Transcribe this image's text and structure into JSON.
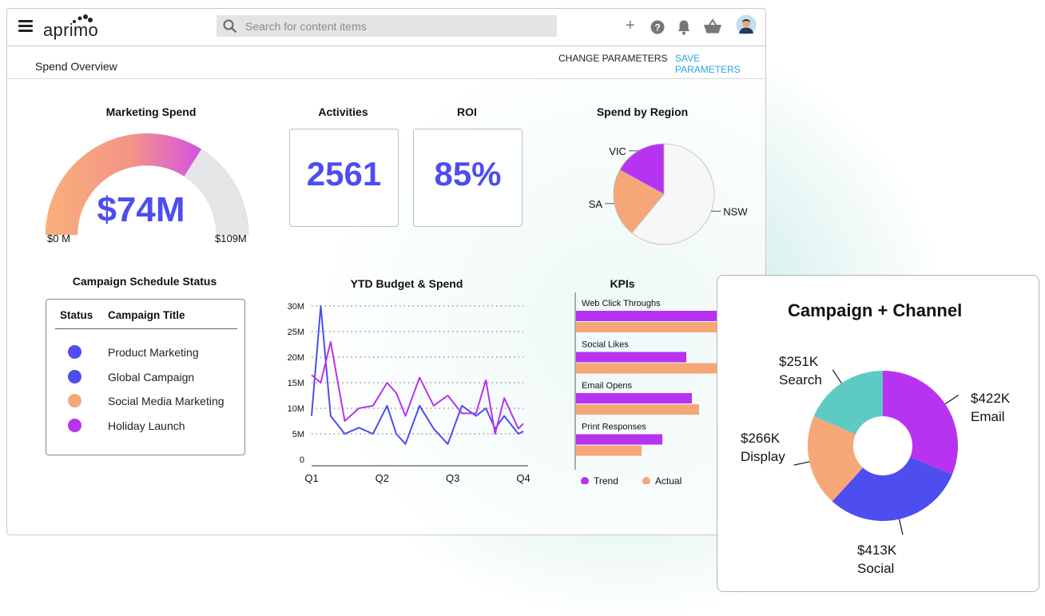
{
  "app": {
    "logo_text": "aprimo",
    "search_placeholder": "Search for content items",
    "plus_label": "+"
  },
  "subbar": {
    "page_title": "Spend Overview",
    "change_params": "CHANGE PARAMETERS",
    "save_params": "SAVE PARAMETERS"
  },
  "colors": {
    "accent_blue": "#4d4df0",
    "purple": "#b833f0",
    "orange": "#f6a777",
    "teal": "#5ecac4",
    "link_blue": "#2aa5e0"
  },
  "marketing_spend": {
    "title": "Marketing Spend",
    "value_label": "$74M",
    "min_label": "$0 M",
    "max_label": "$109M",
    "fraction": 0.68
  },
  "activities": {
    "title": "Activities",
    "value": "2561"
  },
  "roi": {
    "title": "ROI",
    "value": "85%"
  },
  "schedule": {
    "title": "Campaign Schedule Status",
    "col_status": "Status",
    "col_title": "Campaign Title",
    "rows": [
      {
        "title": "Product Marketing",
        "color": "#4d4df0"
      },
      {
        "title": "Global Campaign",
        "color": "#4d4df0"
      },
      {
        "title": "Social Media Marketing",
        "color": "#f6a777"
      },
      {
        "title": "Holiday Launch",
        "color": "#b833f0"
      }
    ]
  },
  "chart_data": [
    {
      "type": "pie",
      "title": "Spend by Region",
      "categories": [
        "NSW",
        "SA",
        "VIC"
      ],
      "values": [
        61,
        22,
        17
      ],
      "colors": [
        "#f7f7f7",
        "#f6a777",
        "#b833f0"
      ]
    },
    {
      "type": "line",
      "title": "YTD Budget & Spend",
      "yticks": [
        "30M",
        "25M",
        "20M",
        "15M",
        "10M",
        "5M",
        "0"
      ],
      "xticks": [
        "Q1",
        "Q2",
        "Q3",
        "Q4"
      ],
      "ylim": [
        0,
        30
      ],
      "grid": true,
      "x": [
        0,
        0.13,
        0.27,
        0.47,
        0.67,
        0.87,
        1.07,
        1.2,
        1.33,
        1.53,
        1.73,
        1.93,
        2.13,
        2.33,
        2.47,
        2.6,
        2.73,
        2.93,
        3.0
      ],
      "series": [
        {
          "color": "#4d4df0",
          "values": [
            8.5,
            30,
            8.5,
            5,
            6.2,
            5,
            10.5,
            5,
            3,
            10.5,
            6,
            3,
            10.5,
            8.5,
            10,
            6,
            8.5,
            5,
            5.5
          ]
        },
        {
          "color": "#b833f0",
          "values": [
            16.5,
            15,
            23,
            7.5,
            10,
            10.5,
            15,
            13,
            8.5,
            16,
            10.5,
            12.5,
            9,
            9,
            15.5,
            5,
            12,
            6,
            7
          ]
        }
      ]
    },
    {
      "type": "bar",
      "title": "KPIs",
      "categories": [
        "Web Click Throughs",
        "Social Likes",
        "Email Opens",
        "Print Responses"
      ],
      "series": [
        {
          "name": "Trend",
          "color": "#b833f0",
          "values": [
            185,
            138,
            145,
            108
          ]
        },
        {
          "name": "Actual",
          "color": "#f6a777",
          "values": [
            185,
            209,
            154,
            82
          ]
        }
      ],
      "legend": "bottom"
    },
    {
      "type": "pie",
      "title": "Campaign + Channel",
      "categories": [
        "Email",
        "Social",
        "Display",
        "Search"
      ],
      "values": [
        422,
        413,
        266,
        251
      ],
      "value_labels": [
        "$422K",
        "$413K",
        "$266K",
        "$251K"
      ],
      "colors": [
        "#b833f0",
        "#4d4df0",
        "#f6a777",
        "#5ecac4"
      ]
    }
  ]
}
